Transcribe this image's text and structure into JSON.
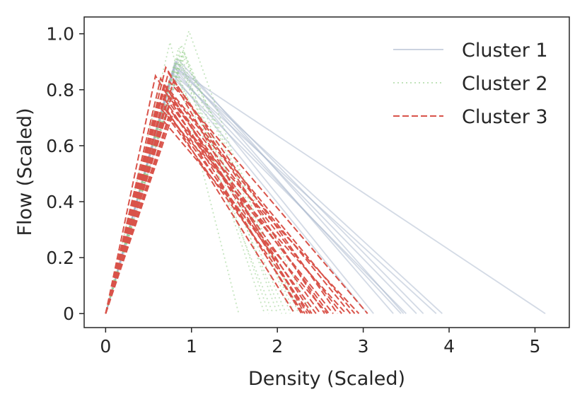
{
  "chart_data": {
    "type": "line",
    "title": "",
    "xlabel": "Density (Scaled)",
    "ylabel": "Flow (Scaled)",
    "xlim": [
      -0.25,
      5.4
    ],
    "ylim": [
      -0.05,
      1.06
    ],
    "xticks": [
      0,
      1,
      2,
      3,
      4,
      5
    ],
    "xtick_labels": [
      "0",
      "1",
      "2",
      "3",
      "4",
      "5"
    ],
    "yticks": [
      0,
      0.2,
      0.4,
      0.6,
      0.8,
      1.0
    ],
    "ytick_labels": [
      "0",
      "0.2",
      "0.4",
      "0.6",
      "0.8",
      "1.0"
    ],
    "grid": false,
    "legend_position": "top-right",
    "series": [
      {
        "name": "Cluster 1",
        "style": "solid",
        "color": "#a8b6cc",
        "opacity": 0.5,
        "curves": [
          [
            [
              0,
              0
            ],
            [
              0.85,
              0.87
            ],
            [
              5.12,
              0
            ]
          ],
          [
            [
              0,
              0
            ],
            [
              0.8,
              0.88
            ],
            [
              3.92,
              0
            ]
          ],
          [
            [
              0,
              0
            ],
            [
              0.78,
              0.86
            ],
            [
              3.85,
              0
            ]
          ],
          [
            [
              0,
              0
            ],
            [
              0.82,
              0.9
            ],
            [
              3.7,
              0
            ]
          ],
          [
            [
              0,
              0
            ],
            [
              0.8,
              0.89
            ],
            [
              3.62,
              0
            ]
          ],
          [
            [
              0,
              0
            ],
            [
              0.76,
              0.85
            ],
            [
              3.5,
              0
            ]
          ],
          [
            [
              0,
              0
            ],
            [
              0.84,
              0.91
            ],
            [
              3.47,
              0
            ]
          ],
          [
            [
              0,
              0
            ],
            [
              0.79,
              0.87
            ],
            [
              3.44,
              0
            ]
          ],
          [
            [
              0,
              0
            ],
            [
              0.81,
              0.9
            ],
            [
              3.35,
              0
            ]
          ],
          [
            [
              0,
              0
            ],
            [
              0.8,
              0.88
            ],
            [
              3.12,
              0
            ]
          ],
          [
            [
              0,
              0
            ],
            [
              0.77,
              0.86
            ],
            [
              3.05,
              0
            ]
          ]
        ]
      },
      {
        "name": "Cluster 2",
        "style": "dotted",
        "color": "#98d08c",
        "opacity": 0.55,
        "curves": [
          [
            [
              0,
              0
            ],
            [
              0.97,
              1.01
            ],
            [
              2.15,
              0
            ]
          ],
          [
            [
              0,
              0
            ],
            [
              0.75,
              0.97
            ],
            [
              1.55,
              0
            ]
          ],
          [
            [
              0,
              0
            ],
            [
              0.85,
              0.95
            ],
            [
              1.9,
              0
            ]
          ],
          [
            [
              0,
              0
            ],
            [
              0.88,
              0.96
            ],
            [
              2.0,
              0
            ]
          ],
          [
            [
              0,
              0
            ],
            [
              0.9,
              0.94
            ],
            [
              2.2,
              0
            ]
          ],
          [
            [
              0,
              0
            ],
            [
              0.92,
              0.93
            ],
            [
              2.25,
              0
            ]
          ],
          [
            [
              0,
              0
            ],
            [
              0.86,
              0.92
            ],
            [
              1.85,
              0
            ]
          ],
          [
            [
              0,
              0
            ],
            [
              0.83,
              0.91
            ],
            [
              2.05,
              0
            ]
          ],
          [
            [
              0,
              0
            ],
            [
              0.87,
              0.9
            ],
            [
              2.1,
              0
            ]
          ],
          [
            [
              0,
              0
            ],
            [
              0.8,
              0.89
            ],
            [
              1.95,
              0
            ]
          ],
          [
            [
              0,
              0
            ],
            [
              0.78,
              0.87
            ],
            [
              2.3,
              0
            ]
          ],
          [
            [
              0,
              0
            ],
            [
              0.9,
              0.92
            ],
            [
              2.4,
              0
            ]
          ]
        ]
      },
      {
        "name": "Cluster 3",
        "style": "dashed",
        "color": "#d9534a",
        "opacity": 1,
        "curves": [
          [
            [
              0,
              0
            ],
            [
              0.58,
              0.85
            ],
            [
              2.28,
              0
            ]
          ],
          [
            [
              0,
              0
            ],
            [
              0.7,
              0.88
            ],
            [
              2.55,
              0
            ]
          ],
          [
            [
              0,
              0
            ],
            [
              0.64,
              0.84
            ],
            [
              2.35,
              0
            ]
          ],
          [
            [
              0,
              0
            ],
            [
              0.73,
              0.86
            ],
            [
              2.7,
              0
            ]
          ],
          [
            [
              0,
              0
            ],
            [
              0.68,
              0.82
            ],
            [
              2.4,
              0
            ]
          ],
          [
            [
              0,
              0
            ],
            [
              0.72,
              0.8
            ],
            [
              2.85,
              0
            ]
          ],
          [
            [
              0,
              0
            ],
            [
              0.66,
              0.78
            ],
            [
              2.3,
              0
            ]
          ],
          [
            [
              0,
              0
            ],
            [
              0.74,
              0.83
            ],
            [
              3.05,
              0
            ]
          ],
          [
            [
              0,
              0
            ],
            [
              0.7,
              0.79
            ],
            [
              2.6,
              0
            ]
          ],
          [
            [
              0,
              0
            ],
            [
              0.76,
              0.77
            ],
            [
              2.75,
              0
            ]
          ],
          [
            [
              0,
              0
            ],
            [
              0.62,
              0.76
            ],
            [
              2.45,
              0
            ]
          ],
          [
            [
              0,
              0
            ],
            [
              0.71,
              0.81
            ],
            [
              2.9,
              0
            ]
          ],
          [
            [
              0,
              0
            ],
            [
              0.75,
              0.75
            ],
            [
              2.5,
              0
            ]
          ],
          [
            [
              0,
              0
            ],
            [
              0.69,
              0.74
            ],
            [
              2.2,
              0
            ]
          ],
          [
            [
              0,
              0
            ],
            [
              0.77,
              0.72
            ],
            [
              2.65,
              0
            ]
          ],
          [
            [
              0,
              0
            ],
            [
              0.65,
              0.73
            ],
            [
              2.8,
              0
            ]
          ],
          [
            [
              0,
              0
            ],
            [
              0.73,
              0.7
            ],
            [
              2.38,
              0
            ]
          ],
          [
            [
              0,
              0
            ],
            [
              0.78,
              0.71
            ],
            [
              2.95,
              0
            ]
          ],
          [
            [
              0,
              0
            ],
            [
              0.67,
              0.69
            ],
            [
              2.58,
              0
            ]
          ],
          [
            [
              0,
              0
            ],
            [
              0.79,
              0.83
            ],
            [
              2.32,
              0
            ]
          ]
        ]
      }
    ]
  }
}
